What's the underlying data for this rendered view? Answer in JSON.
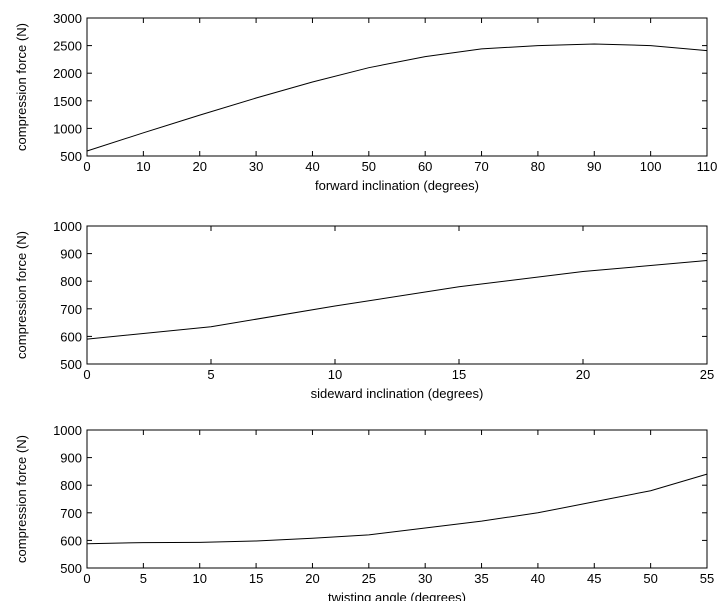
{
  "chart_data": [
    {
      "type": "line",
      "xlabel": "forward inclination (degrees)",
      "ylabel": "compression force (N)",
      "xlim": [
        0,
        110
      ],
      "ylim": [
        500,
        3000
      ],
      "xticks": [
        0,
        10,
        20,
        30,
        40,
        50,
        60,
        70,
        80,
        90,
        100,
        110
      ],
      "yticks": [
        500,
        1000,
        1500,
        2000,
        2500,
        3000
      ],
      "grid": false,
      "series": [
        {
          "x": [
            0,
            10,
            20,
            30,
            40,
            50,
            60,
            70,
            80,
            90,
            100,
            110
          ],
          "values": [
            590,
            920,
            1240,
            1550,
            1840,
            2100,
            2300,
            2440,
            2500,
            2530,
            2500,
            2410
          ]
        }
      ]
    },
    {
      "type": "line",
      "xlabel": "sideward inclination (degrees)",
      "ylabel": "compression force (N)",
      "xlim": [
        0,
        25
      ],
      "ylim": [
        500,
        1000
      ],
      "xticks": [
        0,
        5,
        10,
        15,
        20,
        25
      ],
      "yticks": [
        500,
        600,
        700,
        800,
        900,
        1000
      ],
      "grid": false,
      "series": [
        {
          "x": [
            0,
            5,
            10,
            15,
            20,
            25
          ],
          "values": [
            590,
            635,
            710,
            780,
            835,
            875
          ]
        }
      ]
    },
    {
      "type": "line",
      "xlabel": "twisting angle (degrees)",
      "ylabel": "compression force (N)",
      "xlim": [
        0,
        55
      ],
      "ylim": [
        500,
        1000
      ],
      "xticks": [
        0,
        5,
        10,
        15,
        20,
        25,
        30,
        35,
        40,
        45,
        50,
        55
      ],
      "yticks": [
        500,
        600,
        700,
        800,
        900,
        1000
      ],
      "grid": false,
      "series": [
        {
          "x": [
            0,
            5,
            10,
            15,
            20,
            25,
            30,
            35,
            40,
            45,
            50,
            55
          ],
          "values": [
            588,
            592,
            593,
            598,
            608,
            620,
            645,
            670,
            700,
            740,
            780,
            840
          ]
        }
      ]
    }
  ]
}
